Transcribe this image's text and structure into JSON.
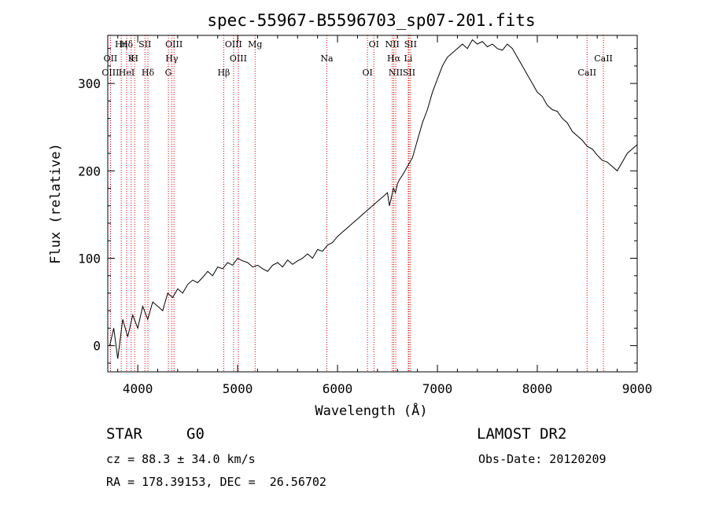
{
  "chart_data": {
    "type": "line",
    "title": "spec-55967-B5596703_sp07-201.fits",
    "xlabel": "Wavelength (Å)",
    "ylabel": "Flux (relative)",
    "xlim": [
      3700,
      9000
    ],
    "ylim": [
      -30,
      355
    ],
    "x_ticks": [
      4000,
      5000,
      6000,
      7000,
      8000,
      9000
    ],
    "y_ticks": [
      0,
      100,
      200,
      300
    ],
    "x_tick_labels": [
      "4000",
      "5000",
      "6000",
      "7000",
      "8000",
      "9000"
    ],
    "y_tick_labels": [
      "0",
      "100",
      "200",
      "300"
    ],
    "grid": false,
    "line_color": "#000000",
    "marker_color": "#cc0000",
    "spectrum": {
      "x": [
        3720,
        3760,
        3800,
        3850,
        3900,
        3950,
        4000,
        4050,
        4100,
        4150,
        4200,
        4250,
        4300,
        4350,
        4400,
        4450,
        4500,
        4550,
        4600,
        4650,
        4700,
        4750,
        4800,
        4850,
        4900,
        4950,
        5000,
        5050,
        5100,
        5150,
        5200,
        5250,
        5300,
        5350,
        5400,
        5450,
        5500,
        5550,
        5600,
        5650,
        5700,
        5750,
        5800,
        5850,
        5900,
        5950,
        6000,
        6050,
        6100,
        6150,
        6200,
        6250,
        6300,
        6350,
        6400,
        6450,
        6500,
        6520,
        6560,
        6580,
        6600,
        6620,
        6650,
        6700,
        6750,
        6800,
        6850,
        6900,
        6950,
        7000,
        7050,
        7100,
        7150,
        7200,
        7250,
        7300,
        7350,
        7400,
        7450,
        7500,
        7550,
        7600,
        7650,
        7700,
        7750,
        7800,
        7850,
        7900,
        7950,
        8000,
        8050,
        8100,
        8150,
        8200,
        8250,
        8300,
        8350,
        8400,
        8450,
        8500,
        8550,
        8600,
        8650,
        8700,
        8750,
        8800,
        8850,
        8900,
        8950,
        9000
      ],
      "y": [
        0,
        20,
        -15,
        30,
        10,
        35,
        20,
        45,
        30,
        50,
        45,
        40,
        60,
        55,
        65,
        60,
        70,
        75,
        72,
        78,
        85,
        80,
        90,
        88,
        95,
        92,
        100,
        97,
        95,
        90,
        92,
        88,
        85,
        92,
        95,
        90,
        98,
        93,
        97,
        100,
        105,
        100,
        110,
        108,
        115,
        118,
        125,
        130,
        135,
        140,
        145,
        150,
        155,
        160,
        165,
        170,
        175,
        160,
        180,
        175,
        185,
        190,
        195,
        205,
        215,
        235,
        255,
        270,
        290,
        305,
        320,
        330,
        335,
        340,
        345,
        340,
        350,
        345,
        348,
        342,
        345,
        340,
        338,
        345,
        340,
        330,
        320,
        310,
        300,
        290,
        285,
        275,
        270,
        268,
        260,
        255,
        245,
        240,
        235,
        228,
        225,
        218,
        212,
        210,
        205,
        200,
        210,
        220,
        225,
        230
      ]
    },
    "lines": [
      {
        "label": "Hδ",
        "x": 3889
      },
      {
        "label": "K",
        "x": 3934
      },
      {
        "label": "Hδ",
        "x": 4102
      },
      {
        "label": "OIII",
        "x": 4363
      },
      {
        "label": "OII",
        "x": 3727
      },
      {
        "label": "HeI",
        "x": 3889
      },
      {
        "label": "SII",
        "x": 4072
      },
      {
        "label": "Hγ",
        "x": 4341
      },
      {
        "label": "OIII",
        "x": 3727
      },
      {
        "label": "Hη",
        "x": 3835
      },
      {
        "label": "H",
        "x": 3969
      },
      {
        "label": "G",
        "x": 4307
      },
      {
        "label": "OIII",
        "x": 4959
      },
      {
        "label": "OIII",
        "x": 5007
      },
      {
        "label": "Hβ",
        "x": 4861
      },
      {
        "label": "Mg",
        "x": 5175
      },
      {
        "label": "Na",
        "x": 5893
      },
      {
        "label": "OI",
        "x": 6300
      },
      {
        "label": "OI",
        "x": 6364
      },
      {
        "label": "Hα",
        "x": 6563
      },
      {
        "label": "SII",
        "x": 6716
      },
      {
        "label": "NII",
        "x": 6548
      },
      {
        "label": "Li",
        "x": 6708
      },
      {
        "label": "NII",
        "x": 6583
      },
      {
        "label": "SII",
        "x": 6731
      },
      {
        "label": "CaII",
        "x": 8662
      },
      {
        "label": "CaII",
        "x": 8498
      }
    ]
  },
  "info": {
    "class": "STAR",
    "subclass": "G0",
    "survey": "LAMOST DR2",
    "velocity": "cz = 88.3 ± 34.0 km/s",
    "obs_date": "Obs-Date: 20120209",
    "coords": "RA = 178.39153, DEC =  26.56702"
  }
}
